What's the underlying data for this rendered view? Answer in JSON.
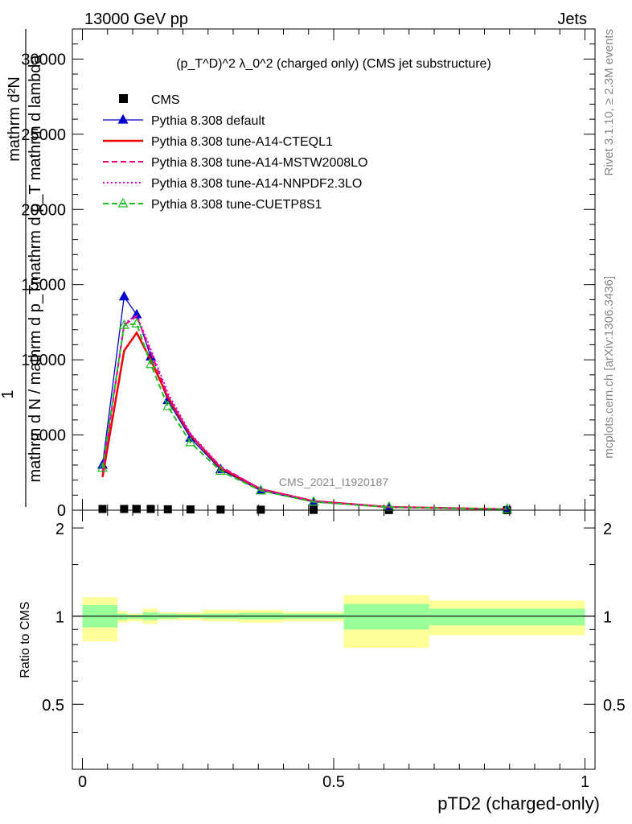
{
  "header": {
    "left": "13000 GeV pp",
    "right": "Jets"
  },
  "side": {
    "rivet": "Rivet 3.1.10, ≥ 2.3M events",
    "mcplots": "mcplots.cern.ch [arXiv:1306.3436]"
  },
  "watermark": "CMS_2021_I1920187",
  "chart_data": [
    {
      "type": "line",
      "title": "(p_T^D)^2 λ_0^2 (charged only) (CMS jet substructure)",
      "ylabel_line1": "mathrm d²N",
      "ylabel_line2": "1",
      "ylabel_line3": "mathrm d N / mathrm d p_Tmathrm d p_T mathrm d lambda",
      "ylim": [
        0,
        32000
      ],
      "yticks": [
        {
          "v": 0,
          "label": "0"
        },
        {
          "v": 5000,
          "label": "5000"
        },
        {
          "v": 10000,
          "label": "10000"
        },
        {
          "v": 15000,
          "label": "15000"
        },
        {
          "v": 20000,
          "label": "20000"
        },
        {
          "v": 25000,
          "label": "25000"
        },
        {
          "v": 30000,
          "label": "30000"
        }
      ],
      "xlim": [
        -0.02,
        1.02
      ],
      "legend_position": "top-left",
      "series": [
        {
          "name": "CMS",
          "color": "#000000",
          "style": "points",
          "x": [
            0.04,
            0.083,
            0.108,
            0.136,
            0.17,
            0.215,
            0.275,
            0.355,
            0.46,
            0.61,
            0.845
          ],
          "y": [
            80,
            80,
            80,
            80,
            60,
            50,
            40,
            30,
            20,
            10,
            5
          ]
        },
        {
          "name": "Pythia 8.308 default",
          "color": "#0000cc",
          "style": "solid",
          "marker": "triangle-filled",
          "x": [
            0.04,
            0.083,
            0.108,
            0.136,
            0.17,
            0.215,
            0.275,
            0.355,
            0.46,
            0.61,
            0.845
          ],
          "y": [
            3000,
            14200,
            13000,
            10200,
            7300,
            4800,
            2700,
            1300,
            550,
            200,
            60
          ]
        },
        {
          "name": "Pythia 8.308 tune-A14-CTEQL1",
          "color": "#ee0000",
          "style": "solid",
          "x": [
            0.04,
            0.083,
            0.108,
            0.136,
            0.17,
            0.215,
            0.275,
            0.355,
            0.46,
            0.61,
            0.845
          ],
          "y": [
            2200,
            10600,
            11800,
            10000,
            7500,
            5000,
            2800,
            1400,
            600,
            210,
            60
          ]
        },
        {
          "name": "Pythia 8.308 tune-A14-MSTW2008LO",
          "color": "#ee0077",
          "style": "dashed",
          "x": [
            0.04,
            0.083,
            0.108,
            0.136,
            0.17,
            0.215,
            0.275,
            0.355,
            0.46,
            0.61,
            0.845
          ],
          "y": [
            2500,
            12300,
            12900,
            10500,
            7600,
            5000,
            2900,
            1400,
            600,
            210,
            60
          ]
        },
        {
          "name": "Pythia 8.308 tune-A14-NNPDF2.3LO",
          "color": "#dd00dd",
          "style": "dotted",
          "x": [
            0.04,
            0.083,
            0.108,
            0.136,
            0.17,
            0.215,
            0.275,
            0.355,
            0.46,
            0.61,
            0.845
          ],
          "y": [
            2600,
            12400,
            13000,
            10700,
            7800,
            5100,
            2900,
            1400,
            600,
            210,
            60
          ]
        },
        {
          "name": "Pythia 8.308 tune-CUETP8S1",
          "color": "#22bb22",
          "style": "dashed",
          "marker": "triangle-open",
          "x": [
            0.04,
            0.083,
            0.108,
            0.136,
            0.17,
            0.215,
            0.275,
            0.355,
            0.46,
            0.61,
            0.845
          ],
          "y": [
            2800,
            12300,
            12400,
            9700,
            6900,
            4500,
            2600,
            1300,
            550,
            200,
            60
          ]
        }
      ]
    },
    {
      "type": "area",
      "ylabel": "Ratio to CMS",
      "xlabel": "pTD2 (charged-only)",
      "ylim": [
        0.3,
        2.3
      ],
      "xlim": [
        -0.02,
        1.02
      ],
      "yticks": [
        {
          "v": 0.5,
          "label": "0.5"
        },
        {
          "v": 1,
          "label": "1"
        },
        {
          "v": 2,
          "label": "2"
        }
      ],
      "xticks": [
        {
          "v": 0,
          "label": "0"
        },
        {
          "v": 0.5,
          "label": "0.5"
        },
        {
          "v": 1,
          "label": "1"
        }
      ],
      "bins": [
        {
          "lo": 0.0,
          "hi": 0.07,
          "inner": [
            0.915,
            1.09
          ],
          "outer": [
            0.82,
            1.16
          ]
        },
        {
          "lo": 0.07,
          "hi": 0.09,
          "inner": [
            0.97,
            1.02
          ],
          "outer": [
            0.95,
            1.04
          ]
        },
        {
          "lo": 0.09,
          "hi": 0.12,
          "inner": [
            0.98,
            1.01
          ],
          "outer": [
            0.96,
            1.02
          ]
        },
        {
          "lo": 0.12,
          "hi": 0.15,
          "inner": [
            0.97,
            1.03
          ],
          "outer": [
            0.94,
            1.06
          ]
        },
        {
          "lo": 0.15,
          "hi": 0.19,
          "inner": [
            0.98,
            1.02
          ],
          "outer": [
            0.97,
            1.03
          ]
        },
        {
          "lo": 0.19,
          "hi": 0.24,
          "inner": [
            0.985,
            1.015
          ],
          "outer": [
            0.97,
            1.03
          ]
        },
        {
          "lo": 0.24,
          "hi": 0.31,
          "inner": [
            0.98,
            1.02
          ],
          "outer": [
            0.96,
            1.05
          ]
        },
        {
          "lo": 0.31,
          "hi": 0.4,
          "inner": [
            0.975,
            1.025
          ],
          "outer": [
            0.95,
            1.05
          ]
        },
        {
          "lo": 0.4,
          "hi": 0.52,
          "inner": [
            0.98,
            1.02
          ],
          "outer": [
            0.96,
            1.035
          ]
        },
        {
          "lo": 0.52,
          "hi": 0.69,
          "inner": [
            0.9,
            1.1
          ],
          "outer": [
            0.78,
            1.18
          ]
        },
        {
          "lo": 0.69,
          "hi": 1.0,
          "inner": [
            0.93,
            1.06
          ],
          "outer": [
            0.86,
            1.13
          ]
        }
      ],
      "colors": {
        "inner": "#99ff99",
        "outer": "#ffff99",
        "line": "#000000"
      }
    }
  ]
}
